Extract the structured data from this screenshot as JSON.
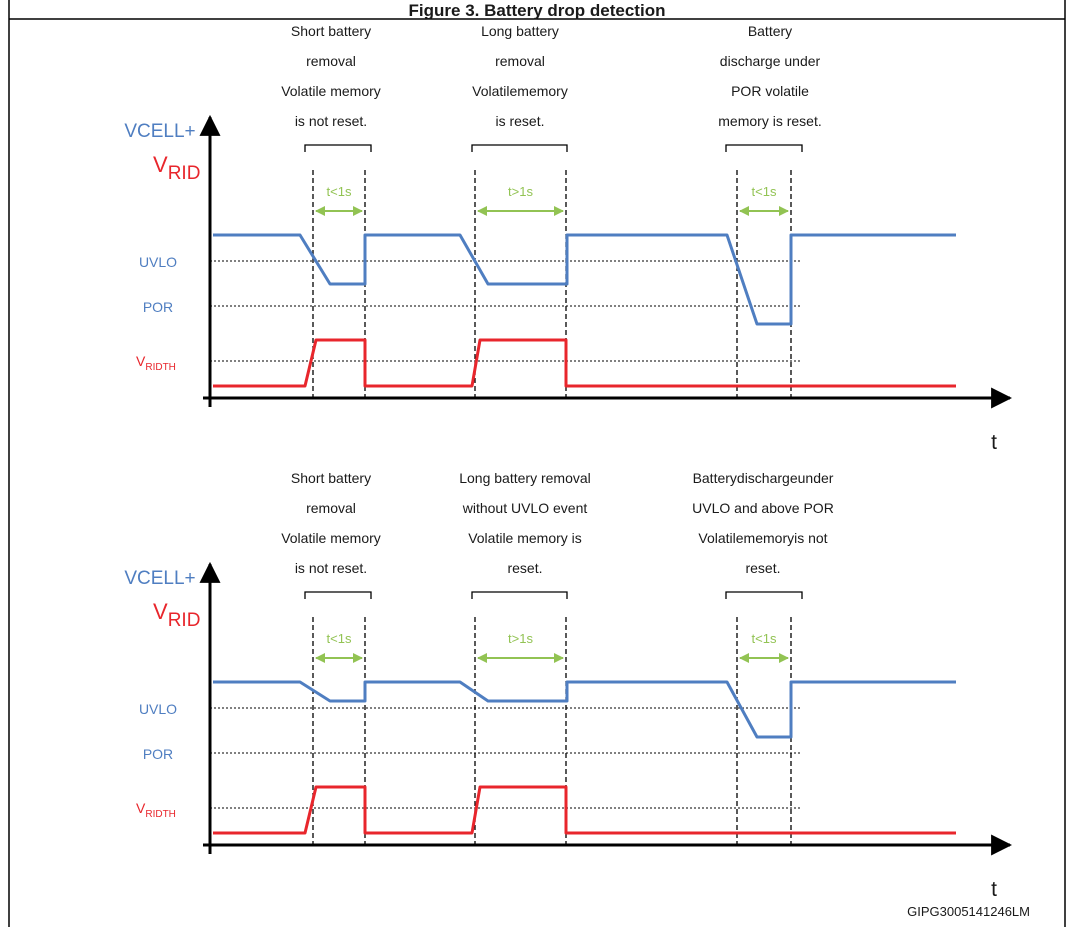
{
  "figure_title": "Figure 3. Battery drop detection",
  "figure_id": "GIPG3005141246LM",
  "colors": {
    "vcell": "#4f7ec1",
    "vrid": "#e8262c",
    "interval": "#92c353",
    "axis": "#000000",
    "text": "#1a1a1a"
  },
  "panels": [
    {
      "id": "top",
      "axis_labels": {
        "vcell": "VCELL+",
        "vrid_main": "V",
        "vrid_sub": "RID",
        "time": "t"
      },
      "levels": {
        "uvlo": "UVLO",
        "por": "POR",
        "vridth_main": "V",
        "vridth_sub": "RIDTH"
      },
      "events": [
        {
          "name": "short-removal",
          "interval": "t<1s",
          "note": [
            "Short  battery",
            "removal",
            "Volatile  memory",
            "is not reset."
          ]
        },
        {
          "name": "long-removal",
          "interval": "t>1s",
          "note": [
            "Long battery",
            "removal",
            "Volatilememory",
            "is reset."
          ]
        },
        {
          "name": "discharge-under-por",
          "interval": "t<1s",
          "note": [
            "Battery",
            "discharge under",
            "POR volatile",
            "memory  is reset."
          ]
        }
      ]
    },
    {
      "id": "bottom",
      "axis_labels": {
        "vcell": "VCELL+",
        "vrid_main": "V",
        "vrid_sub": "RID",
        "time": "t"
      },
      "levels": {
        "uvlo": "UVLO",
        "por": "POR",
        "vridth_main": "V",
        "vridth_sub": "RIDTH"
      },
      "events": [
        {
          "name": "short-removal",
          "interval": "t<1s",
          "note": [
            "Short  battery",
            "removal",
            "Volatile memory",
            "is not reset."
          ]
        },
        {
          "name": "long-removal-no-uvlo",
          "interval": "t>1s",
          "note": [
            "Long battery removal",
            "without UVLO event",
            "Volatile memory is",
            "reset."
          ]
        },
        {
          "name": "discharge-between-uvlo-por",
          "interval": "t<1s",
          "note": [
            "Batterydischargeunder",
            "UVLO and above POR",
            "Volatilememoryis not",
            "reset."
          ]
        }
      ]
    }
  ]
}
